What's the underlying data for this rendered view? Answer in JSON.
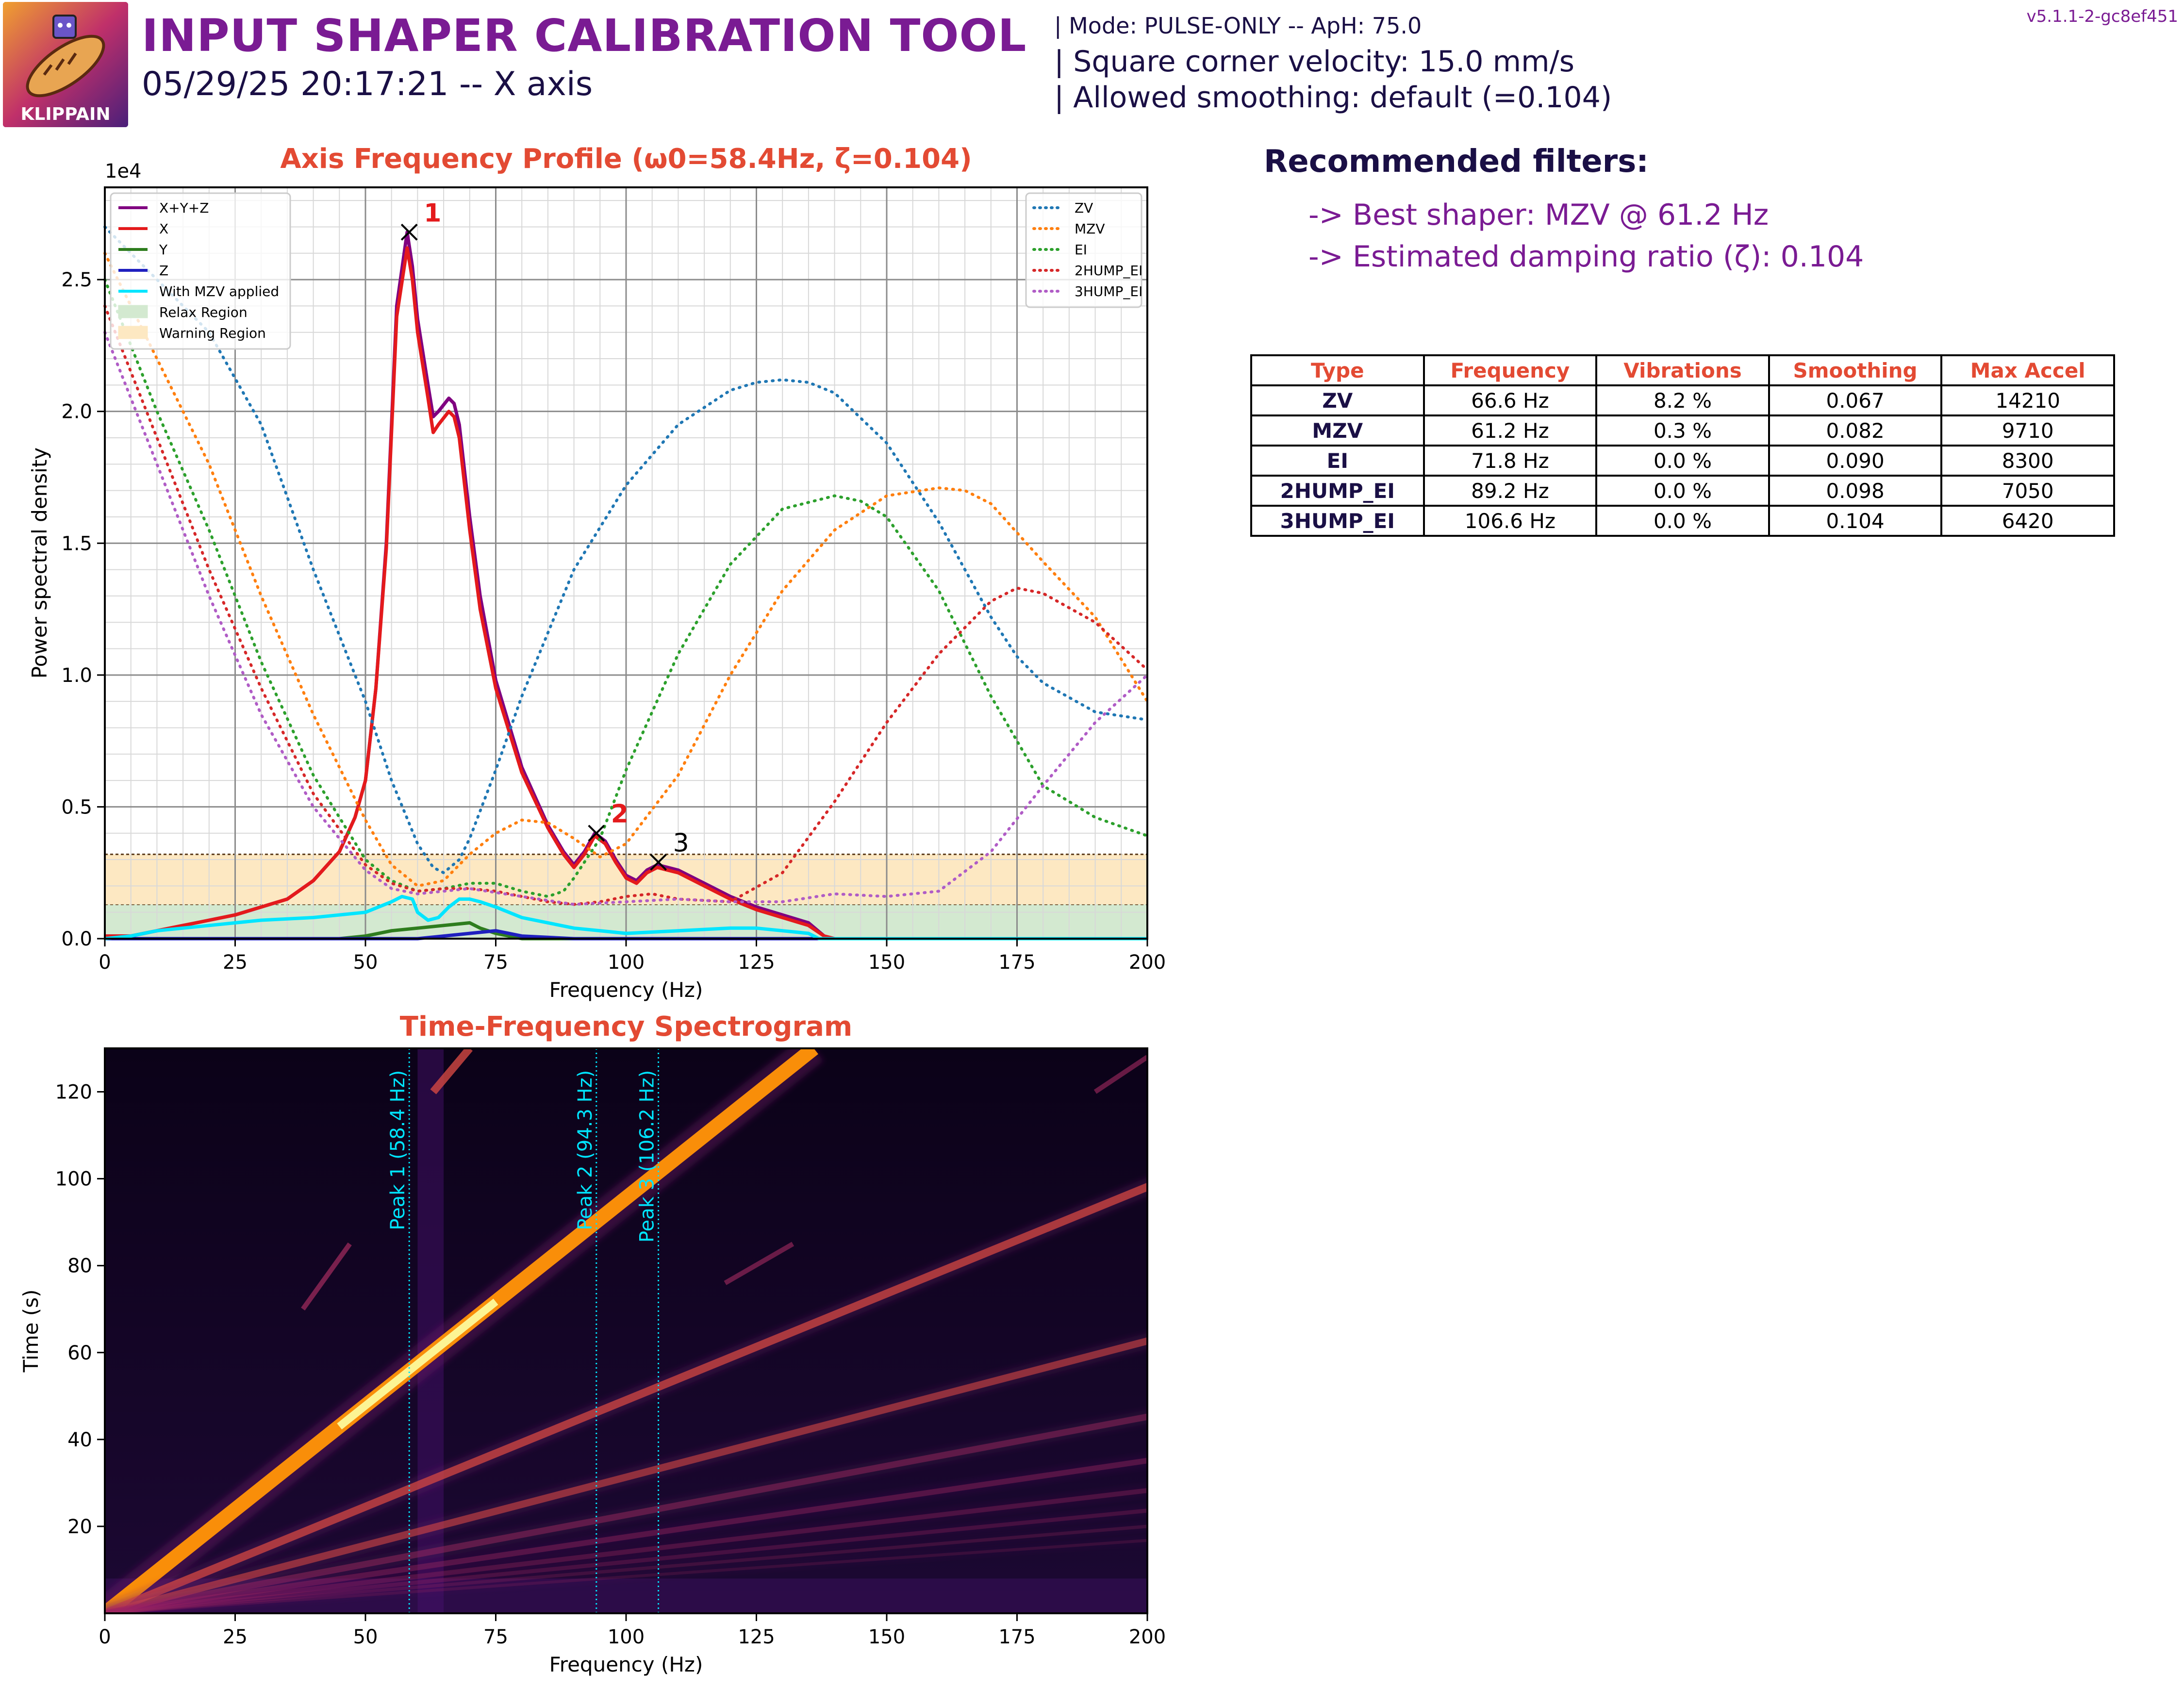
{
  "header": {
    "logo_text": "KLIPPAIN",
    "title": "INPUT SHAPER CALIBRATION TOOL",
    "subtitle": "05/29/25 20:17:21 -- X axis",
    "mode_line": "| Mode: PULSE-ONLY -- ApH: 75.0",
    "scv_line": "| Square corner velocity: 15.0 mm/s",
    "smoothing_line": "| Allowed smoothing: default (=0.104)",
    "version": "v5.1.1-2-gc8ef451"
  },
  "recommendations": {
    "title": "Recommended filters:",
    "best_shaper": "-> Best shaper: MZV @ 61.2 Hz",
    "damping": "-> Estimated damping ratio (ζ): 0.104"
  },
  "filters_table": {
    "headers": [
      "Type",
      "Frequency",
      "Vibrations",
      "Smoothing",
      "Max Accel"
    ],
    "rows": [
      [
        "ZV",
        "66.6 Hz",
        "8.2 %",
        "0.067",
        "14210"
      ],
      [
        "MZV",
        "61.2 Hz",
        "0.3 %",
        "0.082",
        "9710"
      ],
      [
        "EI",
        "71.8 Hz",
        "0.0 %",
        "0.090",
        "8300"
      ],
      [
        "2HUMP_EI",
        "89.2 Hz",
        "0.0 %",
        "0.098",
        "7050"
      ],
      [
        "3HUMP_EI",
        "106.6 Hz",
        "0.0 %",
        "0.104",
        "6420"
      ]
    ]
  },
  "chart_data": [
    {
      "type": "line",
      "title": "Axis Frequency Profile (ω0=58.4Hz, ζ=0.104)",
      "xlabel": "Frequency (Hz)",
      "ylabel": "Power spectral density",
      "y_multiplier": "1e4",
      "xlim": [
        0,
        200
      ],
      "ylim": [
        0,
        2.85
      ],
      "xticks": [
        0,
        25,
        50,
        75,
        100,
        125,
        150,
        175,
        200
      ],
      "yticks": [
        0.0,
        0.5,
        1.0,
        1.5,
        2.0,
        2.5
      ],
      "grid": true,
      "legend_left_position": "top-left",
      "legend_right_position": "top-right",
      "regions": [
        {
          "name": "Relax Region",
          "y0": 0,
          "y1": 0.13,
          "color": "#d3e9d0"
        },
        {
          "name": "Warning Region",
          "y0": 0.13,
          "y1": 0.32,
          "color": "#fde8c2"
        }
      ],
      "series": [
        {
          "name": "X+Y+Z",
          "color": "#800080",
          "style": "solid",
          "axis": "left",
          "x": [
            0,
            5,
            10,
            15,
            20,
            25,
            30,
            35,
            40,
            45,
            48,
            50,
            52,
            54,
            56,
            58,
            59,
            60,
            62,
            63,
            64,
            66,
            67,
            68,
            70,
            72,
            75,
            80,
            85,
            88,
            90,
            92,
            94,
            96,
            98,
            100,
            102,
            104,
            106,
            108,
            110,
            115,
            120,
            125,
            130,
            135,
            138,
            140,
            150,
            175,
            200
          ],
          "y": [
            0.01,
            0.01,
            0.03,
            0.05,
            0.07,
            0.09,
            0.12,
            0.15,
            0.22,
            0.33,
            0.46,
            0.6,
            0.95,
            1.5,
            2.4,
            2.68,
            2.55,
            2.35,
            2.1,
            1.98,
            2.0,
            2.05,
            2.03,
            1.95,
            1.6,
            1.3,
            0.98,
            0.65,
            0.43,
            0.33,
            0.28,
            0.33,
            0.4,
            0.37,
            0.3,
            0.24,
            0.22,
            0.26,
            0.28,
            0.27,
            0.26,
            0.21,
            0.16,
            0.12,
            0.09,
            0.06,
            0.01,
            0.0,
            0.0,
            0.0,
            0.0
          ]
        },
        {
          "name": "X",
          "color": "#e41a1c",
          "style": "solid",
          "axis": "left",
          "x": [
            0,
            5,
            10,
            15,
            20,
            25,
            30,
            35,
            40,
            45,
            48,
            50,
            52,
            54,
            56,
            58,
            59,
            60,
            62,
            63,
            64,
            66,
            67,
            68,
            70,
            72,
            75,
            80,
            85,
            88,
            90,
            92,
            94,
            96,
            98,
            100,
            102,
            104,
            106,
            108,
            110,
            115,
            120,
            125,
            130,
            135,
            138,
            140,
            150,
            175,
            200
          ],
          "y": [
            0.01,
            0.01,
            0.03,
            0.05,
            0.07,
            0.09,
            0.12,
            0.15,
            0.22,
            0.33,
            0.46,
            0.6,
            0.95,
            1.48,
            2.36,
            2.62,
            2.5,
            2.3,
            2.05,
            1.92,
            1.95,
            2.0,
            1.98,
            1.9,
            1.55,
            1.25,
            0.95,
            0.63,
            0.42,
            0.32,
            0.27,
            0.32,
            0.39,
            0.36,
            0.29,
            0.23,
            0.21,
            0.25,
            0.27,
            0.26,
            0.25,
            0.2,
            0.15,
            0.11,
            0.08,
            0.05,
            0.01,
            0.0,
            0.0,
            0.0,
            0.0
          ]
        },
        {
          "name": "Y",
          "color": "#2e7d1e",
          "style": "solid",
          "axis": "left",
          "x": [
            0,
            40,
            45,
            50,
            55,
            60,
            65,
            70,
            72,
            75,
            80,
            100,
            200
          ],
          "y": [
            0.0,
            0.0,
            0.0,
            0.01,
            0.03,
            0.04,
            0.05,
            0.06,
            0.04,
            0.02,
            0.0,
            0.0,
            0.0
          ]
        },
        {
          "name": "Z",
          "color": "#1f1fbf",
          "style": "solid",
          "axis": "left",
          "x": [
            0,
            50,
            60,
            65,
            70,
            75,
            80,
            90,
            100,
            200
          ],
          "y": [
            0.0,
            0.0,
            0.0,
            0.01,
            0.02,
            0.03,
            0.01,
            0.0,
            0.0,
            0.0
          ]
        },
        {
          "name": "With MZV applied",
          "color": "#00e5ff",
          "style": "solid",
          "axis": "left",
          "x": [
            0,
            5,
            10,
            20,
            30,
            40,
            50,
            55,
            57,
            59,
            60,
            62,
            64,
            66,
            68,
            70,
            72,
            75,
            80,
            90,
            100,
            110,
            120,
            125,
            130,
            135,
            137,
            140,
            200
          ],
          "y": [
            0.0,
            0.01,
            0.03,
            0.05,
            0.07,
            0.08,
            0.1,
            0.14,
            0.16,
            0.15,
            0.1,
            0.07,
            0.08,
            0.12,
            0.15,
            0.15,
            0.14,
            0.12,
            0.08,
            0.04,
            0.02,
            0.03,
            0.04,
            0.04,
            0.03,
            0.02,
            0.0,
            0.0,
            0.0
          ]
        },
        {
          "name": "ZV",
          "color": "#1f77b4",
          "style": "dotted",
          "axis": "right",
          "x": [
            0,
            10,
            20,
            30,
            40,
            50,
            55,
            60,
            63,
            65,
            68,
            70,
            75,
            80,
            90,
            100,
            110,
            120,
            125,
            130,
            135,
            140,
            150,
            160,
            170,
            175,
            180,
            190,
            200
          ],
          "y": [
            2.7,
            2.5,
            2.3,
            1.95,
            1.4,
            0.9,
            0.6,
            0.36,
            0.27,
            0.25,
            0.3,
            0.38,
            0.64,
            0.92,
            1.4,
            1.72,
            1.95,
            2.08,
            2.11,
            2.12,
            2.11,
            2.07,
            1.88,
            1.58,
            1.22,
            1.07,
            0.97,
            0.86,
            0.83
          ]
        },
        {
          "name": "MZV",
          "color": "#ff7f0e",
          "style": "dotted",
          "axis": "right",
          "x": [
            0,
            10,
            20,
            30,
            40,
            50,
            55,
            60,
            65,
            70,
            75,
            80,
            85,
            90,
            95,
            100,
            110,
            120,
            130,
            140,
            150,
            160,
            165,
            170,
            180,
            190,
            200
          ],
          "y": [
            2.6,
            2.2,
            1.8,
            1.3,
            0.85,
            0.45,
            0.28,
            0.2,
            0.22,
            0.32,
            0.4,
            0.45,
            0.44,
            0.38,
            0.31,
            0.36,
            0.62,
            1.0,
            1.32,
            1.55,
            1.68,
            1.71,
            1.7,
            1.65,
            1.43,
            1.22,
            0.9
          ]
        },
        {
          "name": "EI",
          "color": "#2ca02c",
          "style": "dotted",
          "axis": "right",
          "x": [
            0,
            10,
            20,
            30,
            40,
            50,
            55,
            60,
            65,
            70,
            75,
            80,
            85,
            88,
            90,
            95,
            100,
            110,
            120,
            130,
            140,
            145,
            150,
            160,
            170,
            180,
            190,
            200
          ],
          "y": [
            2.5,
            2.0,
            1.55,
            1.05,
            0.62,
            0.3,
            0.22,
            0.18,
            0.19,
            0.21,
            0.21,
            0.18,
            0.16,
            0.18,
            0.23,
            0.38,
            0.64,
            1.08,
            1.42,
            1.63,
            1.68,
            1.66,
            1.6,
            1.32,
            0.92,
            0.58,
            0.46,
            0.39
          ]
        },
        {
          "name": "2HUMP_EI",
          "color": "#d62728",
          "style": "dotted",
          "axis": "right",
          "x": [
            0,
            10,
            20,
            30,
            40,
            50,
            55,
            60,
            65,
            70,
            75,
            80,
            85,
            90,
            95,
            100,
            105,
            110,
            120,
            130,
            140,
            150,
            160,
            170,
            175,
            180,
            190,
            200
          ],
          "y": [
            2.4,
            1.9,
            1.4,
            0.95,
            0.55,
            0.28,
            0.21,
            0.18,
            0.19,
            0.19,
            0.18,
            0.16,
            0.14,
            0.13,
            0.14,
            0.16,
            0.17,
            0.15,
            0.14,
            0.25,
            0.52,
            0.82,
            1.08,
            1.28,
            1.33,
            1.31,
            1.2,
            1.02
          ]
        },
        {
          "name": "3HUMP_EI",
          "color": "#b05cc6",
          "style": "dotted",
          "axis": "right",
          "x": [
            0,
            10,
            20,
            30,
            40,
            50,
            55,
            60,
            65,
            70,
            80,
            90,
            100,
            110,
            120,
            130,
            140,
            150,
            160,
            170,
            180,
            190,
            200
          ],
          "y": [
            2.3,
            1.8,
            1.3,
            0.85,
            0.5,
            0.26,
            0.19,
            0.17,
            0.18,
            0.19,
            0.16,
            0.13,
            0.14,
            0.15,
            0.14,
            0.14,
            0.17,
            0.16,
            0.18,
            0.33,
            0.58,
            0.82,
            1.0
          ]
        }
      ],
      "peaks": [
        {
          "label": "1",
          "x": 58.4,
          "y": 2.68,
          "color": "#e41a1c"
        },
        {
          "label": "2",
          "x": 94.3,
          "y": 0.4,
          "color": "#e41a1c"
        },
        {
          "label": "3",
          "x": 106.2,
          "y": 0.29,
          "color": "#000000"
        }
      ]
    },
    {
      "type": "heatmap",
      "title": "Time-Frequency Spectrogram",
      "xlabel": "Frequency (Hz)",
      "ylabel": "Time (s)",
      "xlim": [
        0,
        200
      ],
      "ylim": [
        0,
        130
      ],
      "xticks": [
        0,
        25,
        50,
        75,
        100,
        125,
        150,
        175,
        200
      ],
      "yticks": [
        20,
        40,
        60,
        80,
        100,
        120
      ],
      "colormap": "inferno",
      "harmonic_lines": [
        {
          "freq_at_130s": 136,
          "intensity": 1.0
        },
        {
          "freq_at_130s": 265,
          "intensity": 0.75
        },
        {
          "freq_at_130s": 415,
          "intensity": 0.6
        },
        {
          "freq_at_130s": 575,
          "intensity": 0.45
        },
        {
          "freq_at_130s": 740,
          "intensity": 0.38
        },
        {
          "freq_at_130s": 920,
          "intensity": 0.32
        },
        {
          "freq_at_130s": 1100,
          "intensity": 0.28
        },
        {
          "freq_at_130s": 1300,
          "intensity": 0.24
        },
        {
          "freq_at_130s": 1550,
          "intensity": 0.2
        }
      ],
      "peak_lines": [
        {
          "label": "Peak 1 (58.4 Hz)",
          "freq": 58.4
        },
        {
          "label": "Peak 2 (94.3 Hz)",
          "freq": 94.3
        },
        {
          "label": "Peak 3 (106.2 Hz)",
          "freq": 106.2
        }
      ],
      "peak_line_color": "#00e5ff"
    }
  ]
}
